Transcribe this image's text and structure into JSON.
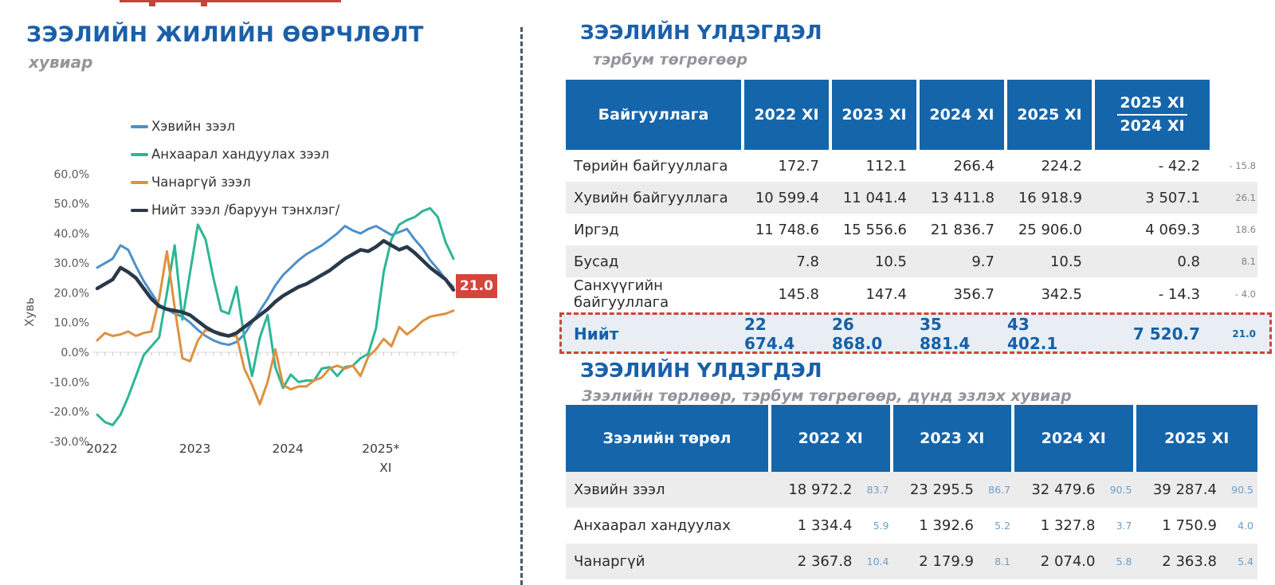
{
  "chart": {
    "title": "ЗЭЭЛИЙН ЖИЛИЙН ӨӨРЧЛӨЛТ",
    "subtitle": "хувиар",
    "y_axis_label": "Хувь",
    "end_label": "21.0",
    "end_label_color": "#d5453b",
    "y_ticks": [
      {
        "v": 60,
        "label": "60.0%"
      },
      {
        "v": 50,
        "label": "50.0%"
      },
      {
        "v": 40,
        "label": "40.0%"
      },
      {
        "v": 30,
        "label": "30.0%"
      },
      {
        "v": 20,
        "label": "20.0%"
      },
      {
        "v": 10,
        "label": "10.0%"
      },
      {
        "v": 0,
        "label": "0.0%"
      },
      {
        "v": -10,
        "label": "-10.0%"
      },
      {
        "v": -20,
        "label": "-20.0%"
      },
      {
        "v": -30,
        "label": "-30.0%"
      }
    ],
    "x_ticks": [
      {
        "i": 0,
        "label": "2022"
      },
      {
        "i": 12,
        "label": "2023"
      },
      {
        "i": 24,
        "label": "2024"
      },
      {
        "i": 36,
        "label": "2025*"
      }
    ],
    "x_note": {
      "i": 36,
      "label": "XI"
    }
  },
  "chart_data": {
    "type": "line",
    "x_start": "2022-01",
    "x_end": "2025-11",
    "x_frequency": "monthly",
    "ylim": [
      -30,
      60
    ],
    "ylabel": "Хувь",
    "legend_position": "top-center",
    "grid": "zero-line-only",
    "annotation": {
      "text": "21.0",
      "series": "Нийт зээл /баруун тэнхлэг/",
      "position": "end"
    },
    "series": [
      {
        "name": "Хэвийн зээл",
        "color": "#4d90c8",
        "width": 3,
        "values": [
          28.5,
          30,
          31.5,
          36,
          34.5,
          29,
          24,
          20,
          16,
          14.5,
          13,
          12,
          10,
          7.5,
          5.5,
          4,
          3,
          2.5,
          3.5,
          6,
          10,
          14,
          18,
          22.5,
          26,
          28.5,
          31,
          33,
          34.5,
          36,
          38,
          40,
          42.5,
          41,
          40,
          41.5,
          42.5,
          41,
          39.5,
          40.5,
          41.5,
          38,
          35,
          31,
          28,
          24.5,
          22
        ]
      },
      {
        "name": "Анхаарал хандуулах зээл",
        "color": "#2cb697",
        "width": 3,
        "values": [
          -21,
          -23.5,
          -24.5,
          -21,
          -15,
          -8,
          -1,
          2,
          5,
          20,
          36,
          11,
          27,
          43,
          38,
          25,
          14,
          13,
          22,
          5,
          -8,
          5,
          12.5,
          -5,
          -12,
          -7.5,
          -10,
          -9.5,
          -9.5,
          -5.5,
          -5,
          -8,
          -5,
          -4.5,
          -2,
          -0.5,
          8,
          27,
          38,
          43,
          44.5,
          45.5,
          47.5,
          48.5,
          45.5,
          37,
          31.5
        ]
      },
      {
        "name": "Чанаргүй зээл",
        "color": "#dd9140",
        "width": 3,
        "values": [
          4,
          6.5,
          5.5,
          6,
          7,
          5.5,
          6.5,
          7,
          18,
          34,
          15,
          -2,
          -3,
          4,
          7.5,
          7,
          6.5,
          5.5,
          5.5,
          -5.5,
          -11,
          -17.5,
          -10,
          1,
          -11,
          -12.5,
          -11.5,
          -11.5,
          -9.5,
          -8.5,
          -5.5,
          -4.5,
          -5.5,
          -4.5,
          -8,
          -1.5,
          1,
          4.5,
          2,
          8.5,
          6,
          8,
          10.5,
          12,
          12.5,
          13,
          14
        ]
      },
      {
        "name": "Нийт зээл /баруун тэнхлэг/",
        "color": "#28394a",
        "width": 4.5,
        "values": [
          21.5,
          23,
          24.5,
          28.5,
          27,
          25,
          21.5,
          18,
          15.5,
          14.5,
          14,
          13.5,
          12.5,
          10.5,
          8.5,
          7,
          6,
          5.5,
          6.5,
          8.5,
          10.5,
          12.5,
          14.5,
          17,
          19,
          20.5,
          22,
          23,
          24.5,
          26,
          27.5,
          29.5,
          31.5,
          33,
          34.5,
          34,
          35.5,
          37.5,
          36,
          34.5,
          35.5,
          33.5,
          31,
          28.5,
          26.5,
          24.5,
          21
        ]
      }
    ]
  },
  "table1": {
    "title": "ЗЭЭЛИЙН ҮЛДЭГДЭЛ",
    "subtitle": "тэрбум төгрөгөөр",
    "columns": [
      "Байгууллага",
      "2022 XI",
      "2023 XI",
      "2024 XI",
      "2025 XI"
    ],
    "change_column": {
      "top": "2025 XI",
      "bottom": "2024 XI"
    },
    "rows": [
      {
        "label": "Төрийн байгууллага",
        "values": [
          "172.7",
          "112.1",
          "266.4",
          "224.2"
        ],
        "change": "- 42.2",
        "pct": "- 15.8"
      },
      {
        "label": "Хувийн байгууллага",
        "values": [
          "10 599.4",
          "11 041.4",
          "13 411.8",
          "16 918.9"
        ],
        "change": "3 507.1",
        "pct": "26.1"
      },
      {
        "label": "Иргэд",
        "values": [
          "11 748.6",
          "15 556.6",
          "21 836.7",
          "25 906.0"
        ],
        "change": "4 069.3",
        "pct": "18.6"
      },
      {
        "label": "Бусад",
        "values": [
          "7.8",
          "10.5",
          "9.7",
          "10.5"
        ],
        "change": "0.8",
        "pct": "8.1"
      },
      {
        "label": "Санхүүгийн байгууллага",
        "values": [
          "145.8",
          "147.4",
          "356.7",
          "342.5"
        ],
        "change": "- 14.3",
        "pct": "- 4.0"
      }
    ],
    "total": {
      "label": "Нийт",
      "values": [
        "22 674.4",
        "26 868.0",
        "35 881.4",
        "43 402.1"
      ],
      "change": "7 520.7",
      "pct": "21.0"
    },
    "highlight_border_color": "#cf4336",
    "header_color": "#1565ab"
  },
  "table2": {
    "title": "ЗЭЭЛИЙН ҮЛДЭГДЭЛ",
    "subtitle": "Зээлийн төрлөөр, тэрбум төгрөгөөр, дүнд эзлэх хувиар",
    "columns": [
      "Зээлийн төрөл",
      "2022 XI",
      "2023 XI",
      "2024 XI",
      "2025 XI"
    ],
    "rows": [
      {
        "label": "Хэвийн зээл",
        "values": [
          [
            "18 972.2",
            "83.7"
          ],
          [
            "23 295.5",
            "86.7"
          ],
          [
            "32 479.6",
            "90.5"
          ],
          [
            "39 287.4",
            "90.5"
          ]
        ]
      },
      {
        "label": "Анхаарал хандуулах",
        "values": [
          [
            "1 334.4",
            "5.9"
          ],
          [
            "1 392.6",
            "5.2"
          ],
          [
            "1 327.8",
            "3.7"
          ],
          [
            "1 750.9",
            "4.0"
          ]
        ]
      },
      {
        "label": "Чанаргүй",
        "values": [
          [
            "2 367.8",
            "10.4"
          ],
          [
            "2 179.9",
            "8.1"
          ],
          [
            "2 074.0",
            "5.8"
          ],
          [
            "2 363.8",
            "5.4"
          ]
        ]
      }
    ]
  }
}
